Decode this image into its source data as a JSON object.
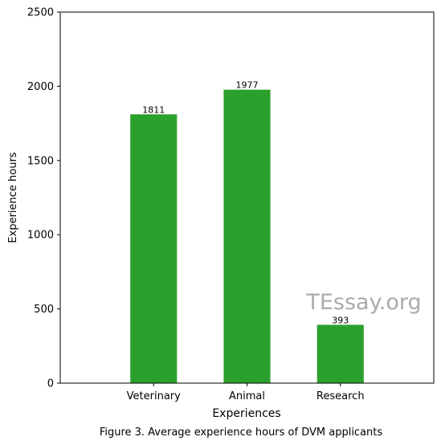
{
  "chart_data": {
    "type": "bar",
    "categories": [
      "Veterinary",
      "Animal",
      "Research"
    ],
    "values": [
      1811,
      1977,
      393
    ],
    "data_labels": [
      "1811",
      "1977",
      "393"
    ],
    "xlabel": "Experiences",
    "ylabel": "Experience hours",
    "ylim": [
      0,
      2500
    ],
    "yticks": [
      0,
      500,
      1000,
      1500,
      2000,
      2500
    ],
    "ytick_labels": [
      "0",
      "500",
      "1000",
      "1500",
      "2000",
      "2500"
    ],
    "bar_color": "#2ca02c",
    "grid": false,
    "legend": "none"
  },
  "caption": "Figure 3. Average experience hours of DVM applicants",
  "watermark": "TEssay.org"
}
